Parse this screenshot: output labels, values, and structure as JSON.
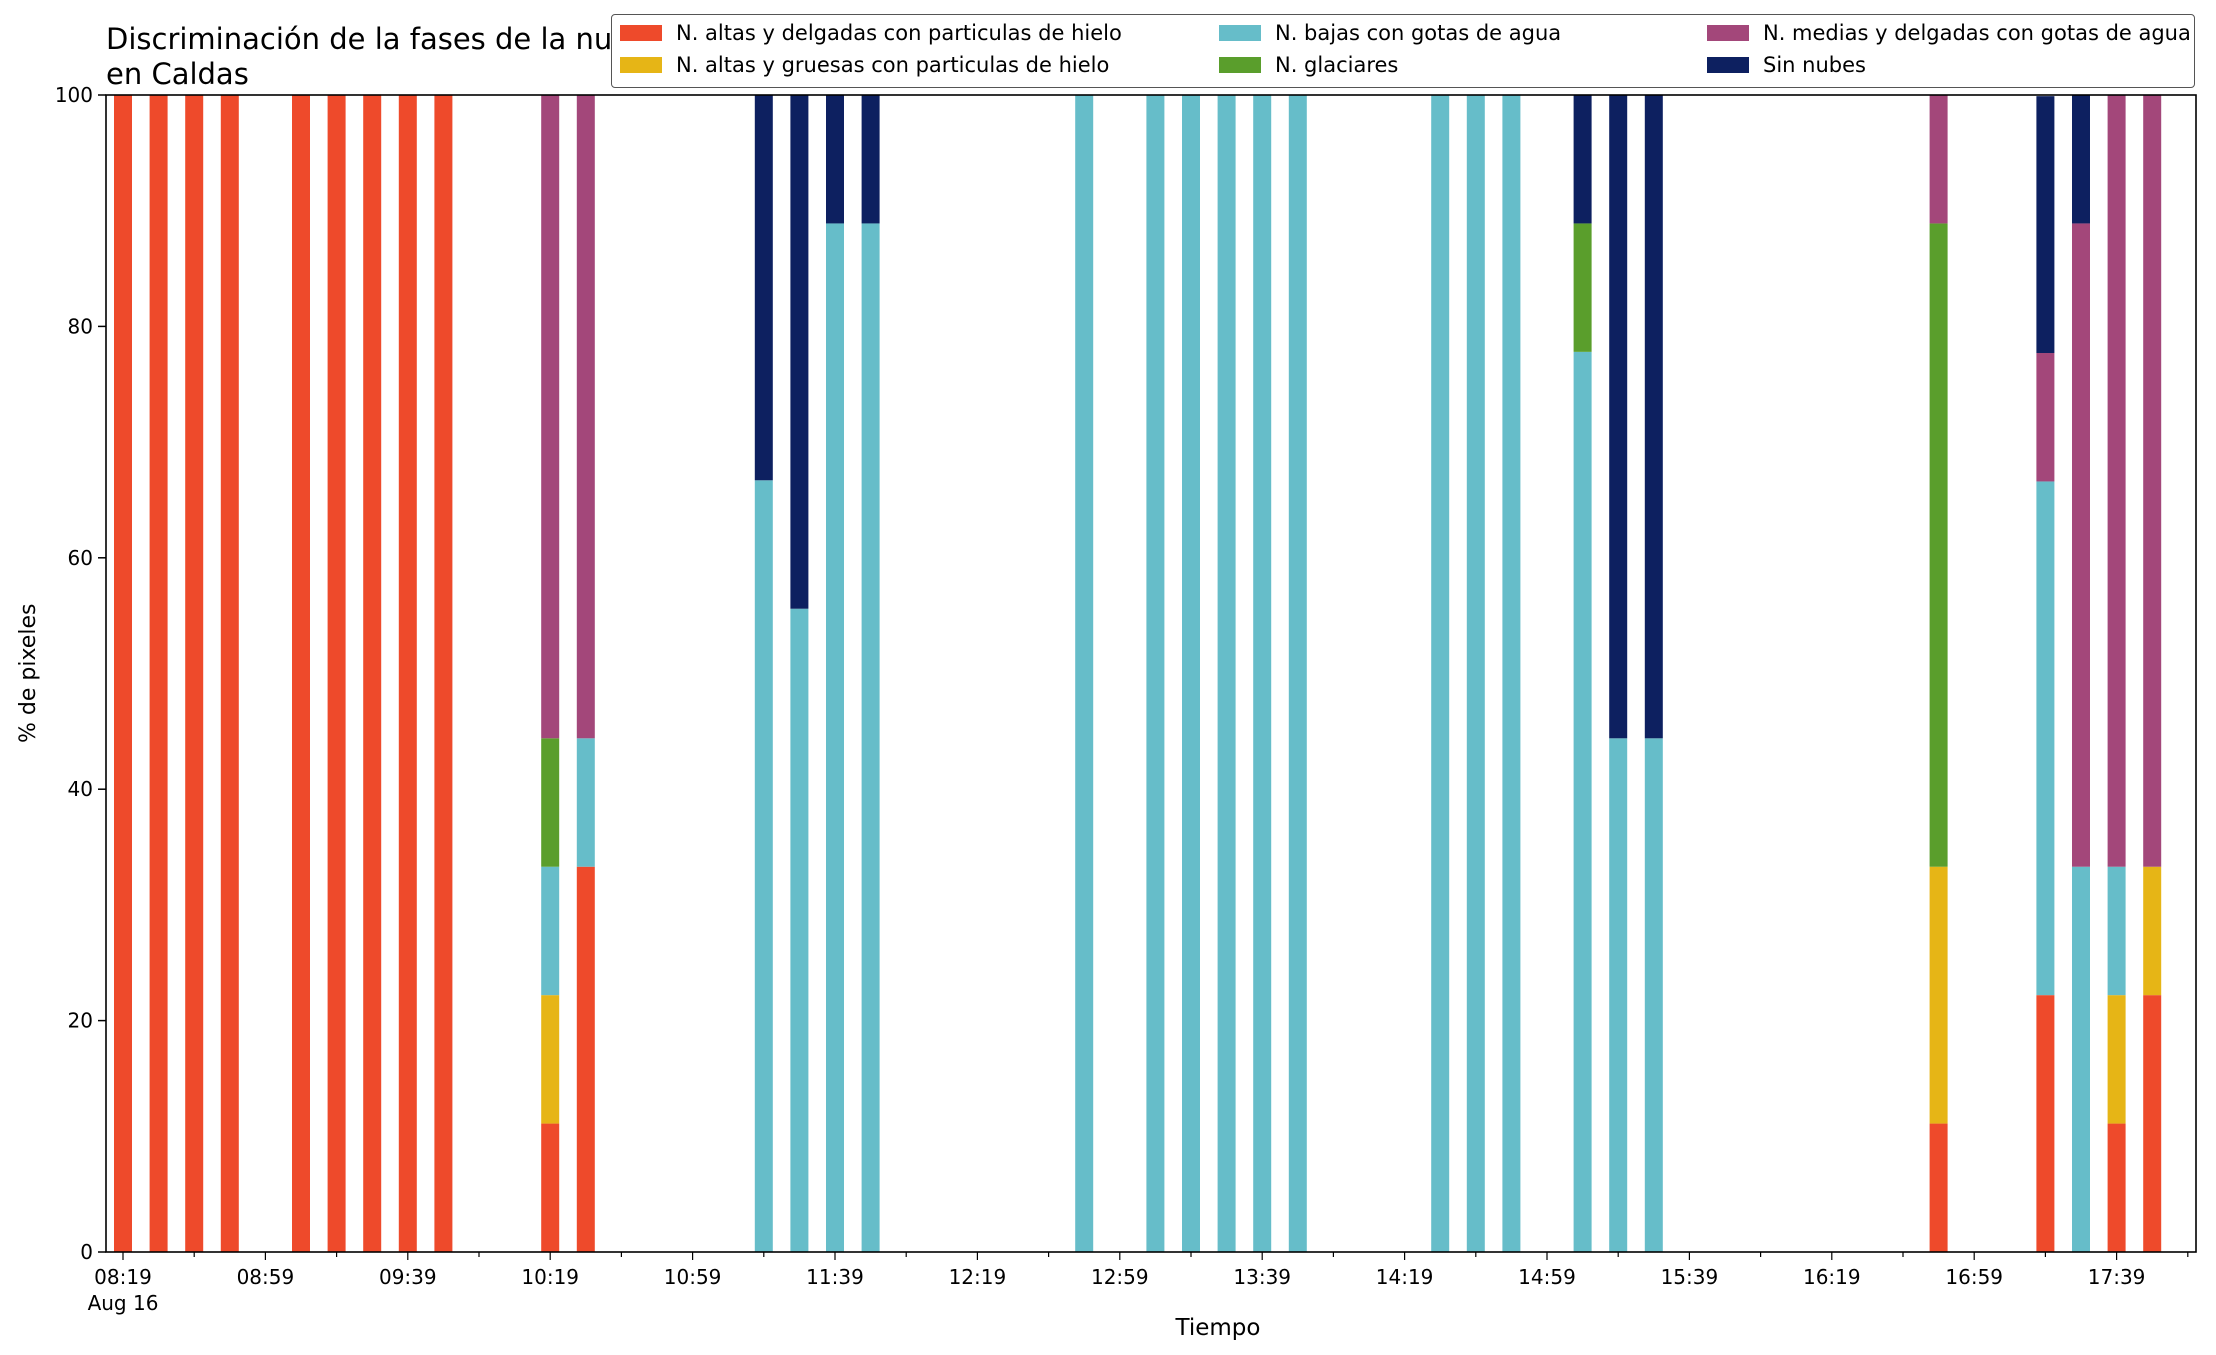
{
  "chart_data": {
    "type": "bar",
    "stacked": true,
    "title": "Discriminación de la fases de la nube en Caldas",
    "xlabel": "Tiempo",
    "ylabel": "% de pixeles",
    "ylim": [
      0,
      100
    ],
    "yticks": [
      "0",
      "20",
      "40",
      "60",
      "80",
      "100"
    ],
    "xticks": [
      {
        "label": "08:19",
        "sub": "Aug 16",
        "minute": 0
      },
      {
        "label": "08:59",
        "minute": 40
      },
      {
        "label": "09:39",
        "minute": 80
      },
      {
        "label": "10:19",
        "minute": 120
      },
      {
        "label": "10:59",
        "minute": 160
      },
      {
        "label": "11:39",
        "minute": 200
      },
      {
        "label": "12:19",
        "minute": 240
      },
      {
        "label": "12:59",
        "minute": 280
      },
      {
        "label": "13:39",
        "minute": 320
      },
      {
        "label": "14:19",
        "minute": 360
      },
      {
        "label": "14:59",
        "minute": 400
      },
      {
        "label": "15:39",
        "minute": 440
      },
      {
        "label": "16:19",
        "minute": 480
      },
      {
        "label": "16:59",
        "minute": 520
      },
      {
        "label": "17:39",
        "minute": 560
      }
    ],
    "grid": false,
    "legend_position": "top-right",
    "series": [
      {
        "name": "N. altas y delgadas con particulas de hielo",
        "color": "#ee4a2b"
      },
      {
        "name": "N. altas y gruesas con particulas de hielo",
        "color": "#e6b516"
      },
      {
        "name": "N. bajas con gotas de agua",
        "color": "#66bdc9"
      },
      {
        "name": "N. glaciares",
        "color": "#5a9e2c"
      },
      {
        "name": "N. medias y delgadas con gotas de agua",
        "color": "#a3477a"
      },
      {
        "name": "Sin nubes",
        "color": "#0d2060"
      }
    ],
    "bars": [
      {
        "time": "08:19",
        "values": [
          100,
          0,
          0,
          0,
          0,
          0
        ]
      },
      {
        "time": "08:29",
        "values": [
          100,
          0,
          0,
          0,
          0,
          0
        ]
      },
      {
        "time": "08:39",
        "values": [
          100,
          0,
          0,
          0,
          0,
          0
        ]
      },
      {
        "time": "08:49",
        "values": [
          100,
          0,
          0,
          0,
          0,
          0
        ]
      },
      {
        "time": "09:09",
        "values": [
          100,
          0,
          0,
          0,
          0,
          0
        ]
      },
      {
        "time": "09:19",
        "values": [
          100,
          0,
          0,
          0,
          0,
          0
        ]
      },
      {
        "time": "09:29",
        "values": [
          100,
          0,
          0,
          0,
          0,
          0
        ]
      },
      {
        "time": "09:39",
        "values": [
          100,
          0,
          0,
          0,
          0,
          0
        ]
      },
      {
        "time": "09:49",
        "values": [
          100,
          0,
          0,
          0,
          0,
          0
        ]
      },
      {
        "time": "10:19",
        "values": [
          11.1,
          11.1,
          11.1,
          11.1,
          55.6,
          0
        ]
      },
      {
        "time": "10:29",
        "values": [
          33.3,
          0,
          11.1,
          0,
          55.6,
          0
        ]
      },
      {
        "time": "11:19",
        "values": [
          0,
          0,
          66.7,
          0,
          0,
          33.3
        ]
      },
      {
        "time": "11:29",
        "values": [
          0,
          0,
          55.6,
          0,
          0,
          44.4
        ]
      },
      {
        "time": "11:39",
        "values": [
          0,
          0,
          88.9,
          0,
          0,
          11.1
        ]
      },
      {
        "time": "11:49",
        "values": [
          0,
          0,
          88.9,
          0,
          0,
          11.1
        ]
      },
      {
        "time": "12:49",
        "values": [
          0,
          0,
          100,
          0,
          0,
          0
        ]
      },
      {
        "time": "13:09",
        "values": [
          0,
          0,
          100,
          0,
          0,
          0
        ]
      },
      {
        "time": "13:19",
        "values": [
          0,
          0,
          100,
          0,
          0,
          0
        ]
      },
      {
        "time": "13:29",
        "values": [
          0,
          0,
          100,
          0,
          0,
          0
        ]
      },
      {
        "time": "13:39",
        "values": [
          0,
          0,
          100,
          0,
          0,
          0
        ]
      },
      {
        "time": "13:49",
        "values": [
          0,
          0,
          100,
          0,
          0,
          0
        ]
      },
      {
        "time": "14:29",
        "values": [
          0,
          0,
          100,
          0,
          0,
          0
        ]
      },
      {
        "time": "14:39",
        "values": [
          0,
          0,
          100,
          0,
          0,
          0
        ]
      },
      {
        "time": "14:49",
        "values": [
          0,
          0,
          100,
          0,
          0,
          0
        ]
      },
      {
        "time": "15:09",
        "values": [
          0,
          0,
          77.8,
          11.1,
          0,
          11.1
        ]
      },
      {
        "time": "15:19",
        "values": [
          0,
          0,
          44.4,
          0,
          0,
          55.6
        ]
      },
      {
        "time": "15:29",
        "values": [
          0,
          0,
          44.4,
          0,
          0,
          55.6
        ]
      },
      {
        "time": "16:49",
        "values": [
          11.1,
          22.2,
          0,
          55.6,
          11.1,
          0
        ]
      },
      {
        "time": "17:19",
        "values": [
          22.2,
          0,
          44.4,
          0,
          11.1,
          22.2
        ]
      },
      {
        "time": "17:29",
        "values": [
          0,
          0,
          33.3,
          0,
          55.6,
          11.1
        ]
      },
      {
        "time": "17:39",
        "values": [
          11.1,
          11.1,
          11.1,
          0,
          66.7,
          0
        ]
      },
      {
        "time": "17:49",
        "values": [
          22.2,
          11.1,
          0,
          0,
          66.7,
          0
        ]
      }
    ]
  }
}
